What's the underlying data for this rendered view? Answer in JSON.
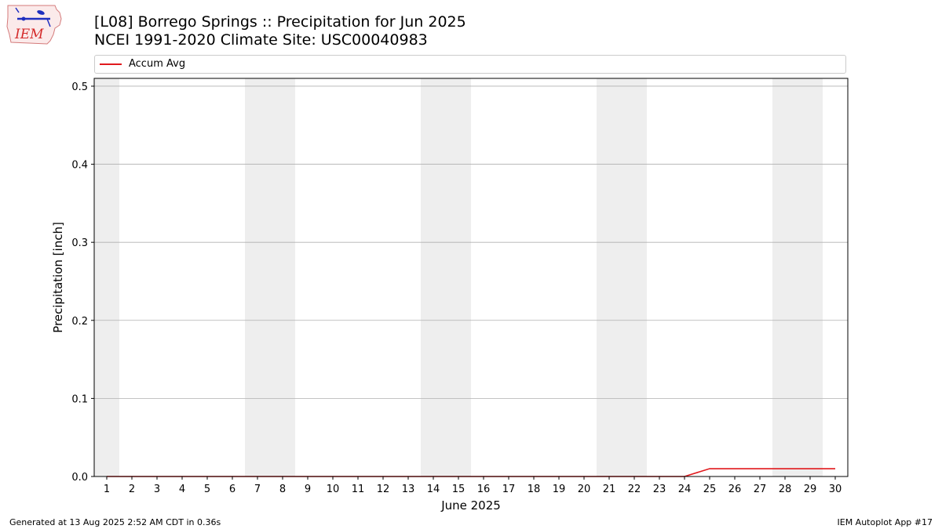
{
  "chart_title": {
    "line1": "[L08] Borrego Springs :: Precipitation for Jun 2025",
    "line2": "NCEI 1991-2020 Climate Site: USC00040983"
  },
  "logo_text": "IEM",
  "footer": {
    "left": "Generated at 13 Aug 2025 2:52 AM CDT in 0.36s",
    "right": "IEM Autoplot App #17"
  },
  "colors": {
    "series": "#e0191d",
    "weekend_band": "#eeeeee",
    "grid": "#b0b0b0",
    "logo": "#1f2fbf",
    "logo_text": "#d42a2a"
  },
  "chart_data": {
    "type": "line",
    "xlabel": "June 2025",
    "ylabel": "Precipitation [inch]",
    "x": [
      1,
      2,
      3,
      4,
      5,
      6,
      7,
      8,
      9,
      10,
      11,
      12,
      13,
      14,
      15,
      16,
      17,
      18,
      19,
      20,
      21,
      22,
      23,
      24,
      25,
      26,
      27,
      28,
      29,
      30
    ],
    "x_tick_labels": [
      "1",
      "2",
      "3",
      "4",
      "5",
      "6",
      "7",
      "8",
      "9",
      "10",
      "11",
      "12",
      "13",
      "14",
      "15",
      "16",
      "17",
      "18",
      "19",
      "20",
      "21",
      "22",
      "23",
      "24",
      "25",
      "26",
      "27",
      "28",
      "29",
      "30"
    ],
    "xlim": [
      0.5,
      30.5
    ],
    "ylim": [
      0,
      0.51
    ],
    "y_ticks": [
      0.0,
      0.1,
      0.2,
      0.3,
      0.4,
      0.5
    ],
    "y_tick_labels": [
      "0.0",
      "0.1",
      "0.2",
      "0.3",
      "0.4",
      "0.5"
    ],
    "grid": "horizontal",
    "legend_position": "top",
    "weekend_days": [
      1,
      7,
      8,
      14,
      15,
      21,
      22,
      28,
      29
    ],
    "series": [
      {
        "name": "Accum Avg",
        "values": [
          0,
          0,
          0,
          0,
          0,
          0,
          0,
          0,
          0,
          0,
          0,
          0,
          0,
          0,
          0,
          0,
          0,
          0,
          0,
          0,
          0,
          0,
          0,
          0,
          0.01,
          0.01,
          0.01,
          0.01,
          0.01,
          0.01
        ]
      }
    ]
  }
}
